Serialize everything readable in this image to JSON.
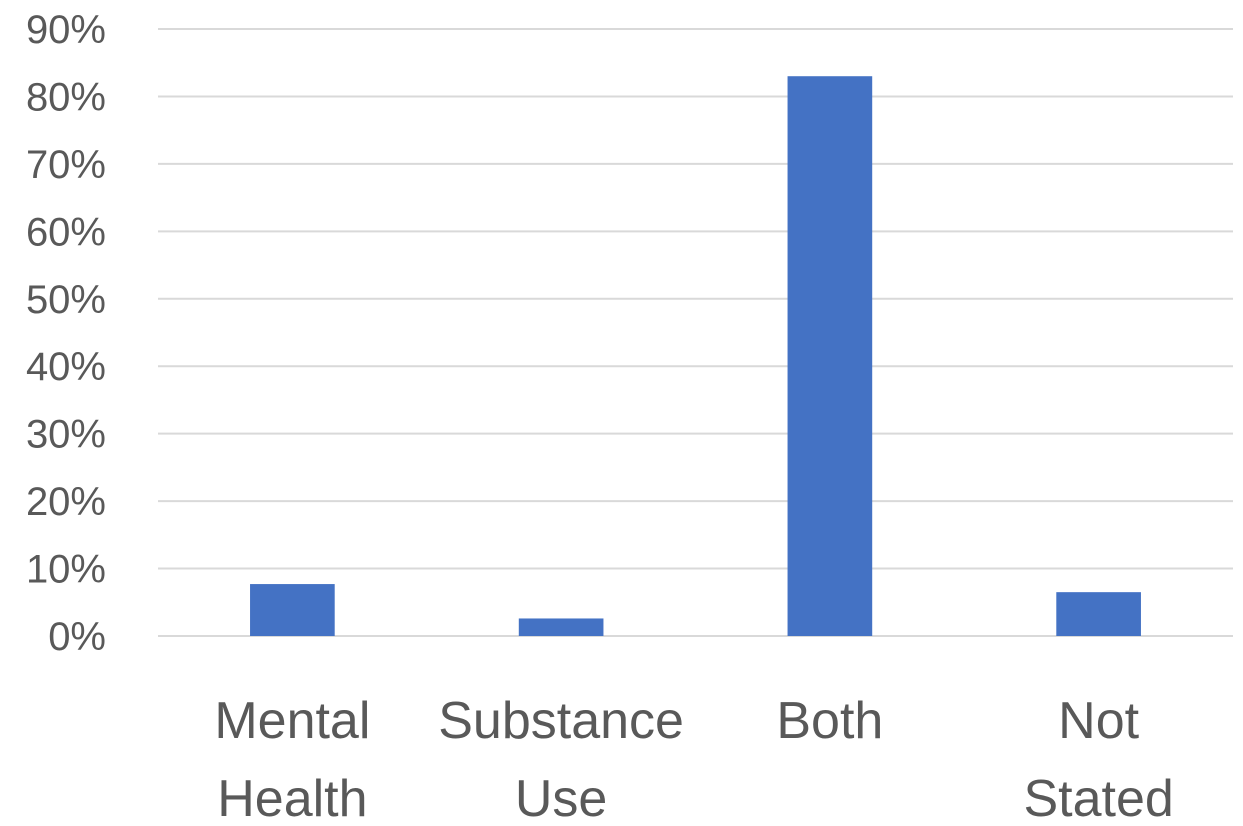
{
  "chart_data": {
    "type": "bar",
    "categories": [
      [
        "Mental",
        "Health"
      ],
      [
        "Substance",
        "Use"
      ],
      [
        "Both"
      ],
      [
        "Not",
        "Stated"
      ]
    ],
    "values": [
      7.7,
      2.6,
      83.0,
      6.5
    ],
    "value_format": "percent",
    "title": "",
    "xlabel": "",
    "ylabel": "",
    "ylim": [
      0,
      90
    ],
    "y_ticks": [
      0,
      10,
      20,
      30,
      40,
      50,
      60,
      70,
      80,
      90
    ],
    "y_tick_labels": [
      "0%",
      "10%",
      "20%",
      "30%",
      "40%",
      "50%",
      "60%",
      "70%",
      "80%",
      "90%"
    ],
    "grid": true,
    "legend": "none",
    "colors": {
      "bar": "#4472c4",
      "grid": "#d9d9d9",
      "text": "#595959"
    }
  }
}
